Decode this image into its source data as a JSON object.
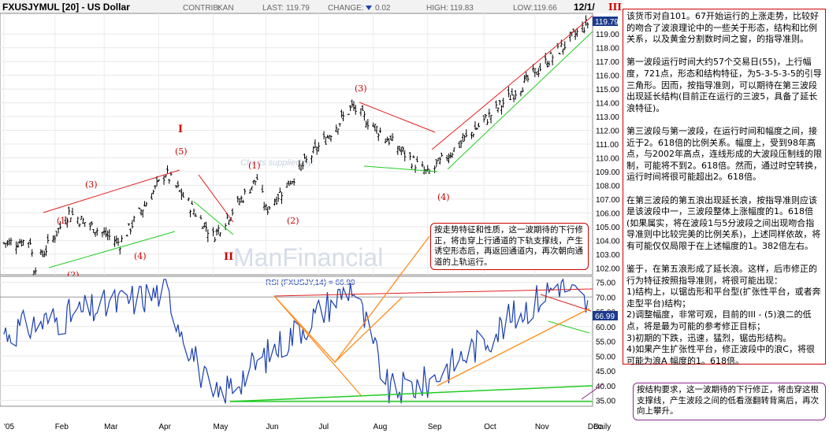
{
  "header": {
    "symbol_title": "FXUSJYMUL [20] - US Dollar",
    "contrib_label": "CONTRIB:",
    "contrib_value": "KAN",
    "last_label": "LAST:",
    "last_value": "119.79",
    "change_label": "CHANGE:",
    "change_value": "0.02",
    "high_label": "HIGH:",
    "high_value": "119.83",
    "low_label": "LOW:",
    "low_value": "119.66",
    "date_corner": "12/1/",
    "corner_wave": "III"
  },
  "watermark": {
    "line1": "Charts supplied by:",
    "logo": "ManFinancial"
  },
  "price_panel": {
    "current_price_tag": "119.79",
    "wave_labels": [
      "(1)",
      "(2)",
      "(3)",
      "(4)",
      "(5)",
      "I",
      "II",
      "(1)",
      "(2)",
      "(3)",
      "(4)"
    ]
  },
  "rsi_panel": {
    "label": "RSI (FXUSJY,14) = 66.99",
    "current_tag": "66.99"
  },
  "x_axis": {
    "months": [
      "'05",
      "Feb",
      "Mar",
      "Apr",
      "May",
      "Jun",
      "Jul",
      "Aug",
      "Sep",
      "Oct",
      "Nov",
      "Dec",
      "Daily"
    ]
  },
  "notes": {
    "main_commentary": "该货币对自101。67开始运行的上涨走势，比较好的吻合了波浪理论中的一些关于形态，结构和比例关系，以及黄金分割数时间之窗，的指导准则。\n\n第一波段运行时间大约57个交易日(55)，上行幅度，721点，形态和结构特征，为5-3-5-3-5的引导三角形。因而，按指导准则，可以期待在第三波段出现延长结构(目前正在运行的三波5，具备了延长浪特征)。\n\n第三波段与第一波段，在运行时间和幅度之间，接近于2。618倍的比例关系。幅度上，受到98年高点，与2002年高点，连线形成的大波段压制线的限制，可能将不到2。618倍。然而，通过时空转换，运行时间将很可能超出2。618倍。\n\n在第三波段的第五浪出现延长浪，按指导准则应该是该波段中一，三波段整体上涨幅度的1。618倍(如果属实，将在波段1与5分波段之间出现吻合指导准则中比较完美的比例关系)，上述同样依故，将有可能仅仅局限于在上述幅度的1。382倍左右。\n\n鉴于，在第五浪形成了延长浪。这样，后市修正的行为特征按照指导准则，将很可能出现：\n1)结构上，以锯齿形和平台型(扩张性平台，或者奔走型平台)结构；\n2)调整幅度，非常可观，目前的III - (5)浪二的低点，将是最为可能的参考修正目标；\n3)初期的下跌，迅速，猛烈，锯齿形结构。\n4)如果产生扩张性平台，修正波段中的浪C，将很可能为浪A 幅度的1。618倍。",
    "callout_red": "按走势特征和性质，这一波期待的下行修正，将击穿上行通道的下轨支撑线，产生诱空形态后，再返回通道内，再次朝向通道的上轨运行。",
    "callout_purple": "按结构要求，这一波期待的下行修正，将击穿这根支撑线，产生波段之间的低看涨翻转背离后，再次向上攀升。"
  },
  "chart_data": [
    {
      "type": "bar",
      "title": "FXUSJYMUL [20] - US Dollar",
      "xlabel": "",
      "ylabel": "",
      "ylim": [
        101.5,
        120.5
      ],
      "y_ticks": [
        102,
        103,
        104,
        105,
        106,
        107,
        108,
        109,
        110,
        111,
        112,
        113,
        114,
        115,
        116,
        117,
        118,
        119
      ],
      "x_ticks": [
        "'05",
        "Feb",
        "Mar",
        "Apr",
        "May",
        "Jun",
        "Jul",
        "Aug",
        "Sep",
        "Oct",
        "Nov",
        "Dec"
      ],
      "x_label_right": "Daily",
      "last": 119.79,
      "key_points": [
        {
          "label": "start",
          "date": "2005-01-03",
          "value": 103.8
        },
        {
          "label": "(1)",
          "date": "2005-01-18",
          "value": 104.0
        },
        {
          "label": "(2)",
          "date": "2005-01-20",
          "value": 102.0
        },
        {
          "label": "(3)",
          "date": "2005-02-09",
          "value": 106.0
        },
        {
          "label": "(4)",
          "date": "2005-03-10",
          "value": 103.8
        },
        {
          "label": "(5) / I",
          "date": "2005-04-05",
          "value": 108.9
        },
        {
          "label": "II",
          "date": "2005-05-02",
          "value": 104.3
        },
        {
          "label": "(1)",
          "date": "2005-05-27",
          "value": 108.5
        },
        {
          "label": "(2)",
          "date": "2005-06-01",
          "value": 106.2
        },
        {
          "label": "(3)",
          "date": "2005-07-20",
          "value": 113.7
        },
        {
          "label": "(4)",
          "date": "2005-09-01",
          "value": 108.8
        },
        {
          "label": "last",
          "date": "2005-12-01",
          "value": 119.79
        }
      ]
    },
    {
      "type": "line",
      "title": "RSI (FXUSJY,14) = 66.99",
      "ylim": [
        33,
        77
      ],
      "y_ticks": [
        35,
        40,
        45,
        50,
        55,
        60,
        65,
        70,
        75
      ],
      "last": 66.99,
      "key_points": [
        {
          "date": "2005-01-03",
          "value": 58
        },
        {
          "date": "2005-04-05",
          "value": 72
        },
        {
          "date": "2005-05-02",
          "value": 35
        },
        {
          "date": "2005-07-20",
          "value": 74
        },
        {
          "date": "2005-08-10",
          "value": 38
        },
        {
          "date": "2005-09-01",
          "value": 41
        },
        {
          "date": "2005-11-15",
          "value": 75
        },
        {
          "date": "2005-12-01",
          "value": 66.99
        }
      ]
    }
  ]
}
